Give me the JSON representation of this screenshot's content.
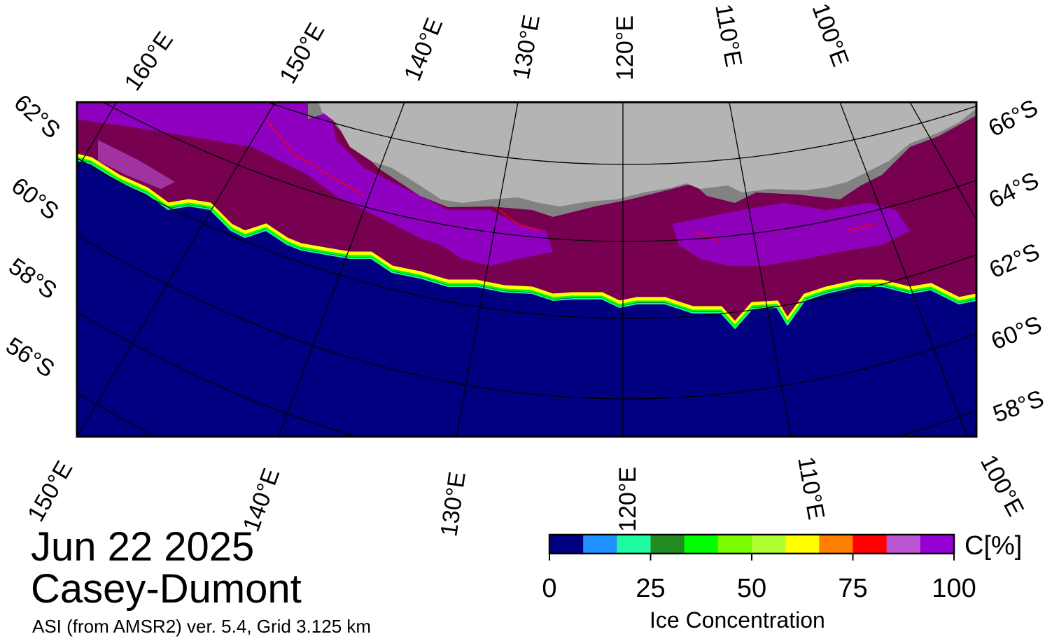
{
  "header": {
    "date": "Jun 22 2025",
    "region": "Casey-Dumont",
    "product": "ASI (from AMSR2) ver. 5.4,  Grid 3.125 km"
  },
  "map": {
    "top_labels": [
      "160°E",
      "150°E",
      "140°E",
      "130°E",
      "120°E",
      "110°E",
      "100°E"
    ],
    "bottom_labels": [
      "150°E",
      "140°E",
      "130°E",
      "120°E",
      "110°E",
      "100°E"
    ],
    "left_labels": [
      "62°S",
      "60°S",
      "58°S",
      "56°S"
    ],
    "right_labels": [
      "66°S",
      "64°S",
      "62°S",
      "60°S",
      "58°S"
    ],
    "colors": {
      "ocean": "#000080",
      "land": "#b4b4b4",
      "shelf": "#828282",
      "dense_ice": "#780050",
      "frame": "#000000"
    }
  },
  "colorbar": {
    "title": "Ice Concentration",
    "unit": "C[%]",
    "ticks": [
      "0",
      "25",
      "50",
      "75",
      "100"
    ],
    "min": 0,
    "max": 100,
    "colors": [
      "#000080",
      "#1e90ff",
      "#1efaa0",
      "#228b22",
      "#00ff00",
      "#7cfc00",
      "#adff2f",
      "#ffff00",
      "#ff7f00",
      "#ff0000",
      "#ba55d3",
      "#9400d3"
    ]
  }
}
